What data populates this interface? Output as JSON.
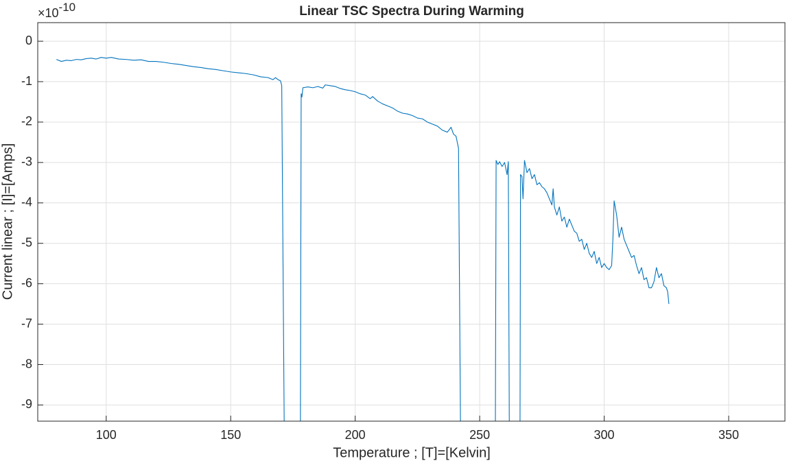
{
  "chart_data": {
    "type": "line",
    "title": "Linear TSC Spectra During Warming",
    "xlabel": "Temperature ; [T]=[Kelvin]",
    "ylabel": "Current linear ; [I]=[Amps]",
    "y_multiplier": {
      "base": "×10",
      "exponent": "-10"
    },
    "xlim": [
      72.5,
      372.6
    ],
    "ylim": [
      -9.4,
      0.46
    ],
    "xticks": [
      100,
      150,
      200,
      250,
      300,
      350
    ],
    "yticks": [
      -9,
      -8,
      -7,
      -6,
      -5,
      -4,
      -3,
      -2,
      -1,
      0
    ],
    "grid": true,
    "x": [
      80,
      82,
      84,
      86,
      88,
      90,
      92,
      94,
      96,
      98,
      100,
      102,
      105,
      108,
      111,
      114,
      117,
      120,
      123,
      126,
      129,
      132,
      135,
      138,
      141,
      144,
      147,
      150,
      153,
      156,
      159,
      162,
      165,
      167,
      168,
      169,
      170,
      170.5,
      171.5,
      178,
      178.3,
      178.6,
      179,
      181,
      183,
      185,
      187,
      188,
      190,
      192,
      194,
      196,
      198,
      200,
      202,
      204,
      206,
      207,
      209,
      211,
      213,
      215,
      217,
      219,
      221,
      223,
      225,
      227,
      229,
      231,
      233,
      235,
      237,
      238.5,
      239.5,
      240.5,
      241,
      241.5,
      242.3,
      256.3,
      256.6,
      257.3,
      258,
      259,
      260,
      261,
      261.5,
      261.9,
      266.2,
      266.4,
      267,
      267.4,
      268,
      269,
      270,
      271,
      272,
      273,
      274,
      275,
      276,
      277,
      278,
      279,
      279.5,
      280,
      281,
      282,
      283,
      284,
      285,
      286,
      287,
      288,
      289,
      290,
      291,
      292,
      293,
      294,
      295,
      296,
      297,
      298,
      299,
      300,
      301,
      302,
      303,
      303.5,
      304,
      305,
      306,
      307,
      308,
      309,
      310,
      311,
      312,
      313,
      314,
      315,
      316,
      317,
      318,
      319,
      320,
      321,
      322,
      323,
      324,
      325,
      325.5,
      326
    ],
    "series": [
      {
        "color": "#0072bd",
        "values": [
          -0.45,
          -0.5,
          -0.47,
          -0.48,
          -0.45,
          -0.46,
          -0.43,
          -0.42,
          -0.44,
          -0.4,
          -0.42,
          -0.4,
          -0.44,
          -0.45,
          -0.47,
          -0.46,
          -0.5,
          -0.5,
          -0.52,
          -0.55,
          -0.57,
          -0.6,
          -0.63,
          -0.65,
          -0.68,
          -0.7,
          -0.73,
          -0.76,
          -0.78,
          -0.8,
          -0.83,
          -0.88,
          -0.9,
          -0.95,
          -0.9,
          -0.95,
          -0.98,
          -1.1,
          -9.6,
          -9.6,
          -1.3,
          -1.38,
          -1.15,
          -1.13,
          -1.15,
          -1.12,
          -1.16,
          -1.08,
          -1.1,
          -1.12,
          -1.17,
          -1.2,
          -1.22,
          -1.25,
          -1.3,
          -1.33,
          -1.42,
          -1.37,
          -1.48,
          -1.55,
          -1.6,
          -1.65,
          -1.73,
          -1.78,
          -1.8,
          -1.84,
          -1.9,
          -1.92,
          -2.0,
          -2.05,
          -2.1,
          -2.2,
          -2.25,
          -2.13,
          -2.3,
          -2.35,
          -2.5,
          -2.65,
          -9.6,
          -9.6,
          -2.95,
          -3.05,
          -2.98,
          -3.1,
          -3.0,
          -3.3,
          -2.98,
          -9.6,
          -9.6,
          -3.3,
          -3.35,
          -3.9,
          -2.95,
          -3.25,
          -3.15,
          -3.4,
          -3.3,
          -3.55,
          -3.5,
          -3.6,
          -3.65,
          -3.75,
          -3.9,
          -4.05,
          -3.65,
          -4.1,
          -4.3,
          -4.1,
          -4.45,
          -4.35,
          -4.6,
          -4.4,
          -4.55,
          -4.7,
          -4.75,
          -4.95,
          -4.9,
          -5.15,
          -5.0,
          -5.25,
          -5.35,
          -5.2,
          -5.5,
          -5.35,
          -5.6,
          -5.5,
          -5.6,
          -5.65,
          -5.55,
          -4.9,
          -3.95,
          -4.3,
          -4.85,
          -4.6,
          -4.9,
          -5.05,
          -5.2,
          -5.35,
          -5.3,
          -5.55,
          -5.75,
          -5.6,
          -5.9,
          -5.85,
          -6.1,
          -6.1,
          -5.95,
          -5.6,
          -5.85,
          -5.75,
          -6.05,
          -6.1,
          -6.2,
          -6.5
        ]
      }
    ]
  }
}
